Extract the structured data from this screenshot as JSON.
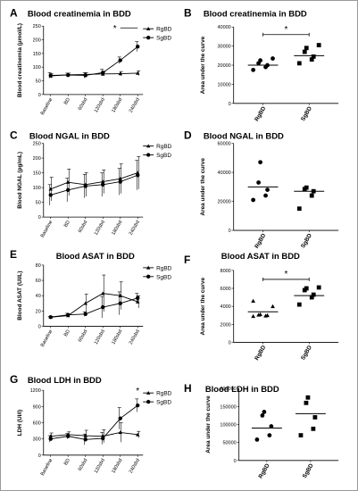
{
  "chart_data": [
    {
      "panel": "A",
      "type": "line",
      "title": "Blood creatinemia in BDD",
      "ylabel": "Blood creatinemia (µmol/L)",
      "xlabel": "",
      "x": [
        "Baseline",
        "BD",
        "60sbd",
        "120sbd",
        "180sbd",
        "240sbd"
      ],
      "ylim": [
        0,
        250
      ],
      "yticks": [
        0,
        50,
        100,
        150,
        200,
        250
      ],
      "series": [
        {
          "name": "RgBD",
          "marker": "triangle",
          "values": [
            68,
            72,
            73,
            75,
            76,
            78
          ],
          "err": [
            8,
            6,
            7,
            7,
            8,
            9
          ]
        },
        {
          "name": "SgBD",
          "marker": "circle",
          "values": [
            70,
            71,
            70,
            80,
            125,
            175
          ],
          "err": [
            10,
            7,
            10,
            12,
            12,
            18
          ]
        }
      ],
      "legend": "top-right",
      "annotation": {
        "text": "*",
        "from": "180sbd",
        "to": "240sbd"
      }
    },
    {
      "panel": "B",
      "type": "scatter",
      "title": "Blood creatinemia in BDD",
      "ylabel": "Area under the curve",
      "categories": [
        "RgBD",
        "SgBD"
      ],
      "ylim": [
        0,
        40000
      ],
      "yticks": [
        0,
        10000,
        20000,
        30000,
        40000
      ],
      "groups": [
        {
          "name": "RgBD",
          "marker": "circle",
          "points": [
            17500,
            19000,
            20000,
            21000,
            22500,
            23500
          ],
          "mean": 20000
        },
        {
          "name": "SgBD",
          "marker": "square",
          "points": [
            21000,
            23000,
            24500,
            27000,
            29000,
            30500
          ],
          "mean": 25000
        }
      ],
      "annotation": {
        "text": "*",
        "value": 36000
      }
    },
    {
      "panel": "C",
      "type": "line",
      "title": "Blood  NGAL in BDD",
      "ylabel": "Blood NGAL (pg/mL)",
      "x": [
        "Baseline",
        "BD",
        "60sbd",
        "120sbd",
        "180sbd",
        "240sbd"
      ],
      "ylim": [
        0,
        250
      ],
      "yticks": [
        0,
        50,
        100,
        150,
        200,
        250
      ],
      "series": [
        {
          "name": "RgBD",
          "marker": "triangle",
          "values": [
            95,
            118,
            110,
            120,
            130,
            150
          ],
          "err": [
            40,
            45,
            40,
            40,
            50,
            55
          ]
        },
        {
          "name": "SgBD",
          "marker": "circle",
          "values": [
            75,
            92,
            105,
            110,
            120,
            142
          ],
          "err": [
            35,
            40,
            40,
            40,
            45,
            50
          ]
        }
      ],
      "legend": "top-right"
    },
    {
      "panel": "D",
      "type": "scatter",
      "title": "Blood  NGAL in BDD",
      "ylabel": "Area under the curve",
      "categories": [
        "RgBD",
        "SgBD"
      ],
      "ylim": [
        0,
        60000
      ],
      "yticks": [
        0,
        20000,
        40000,
        60000
      ],
      "groups": [
        {
          "name": "RgBD",
          "marker": "circle",
          "points": [
            21000,
            24000,
            28000,
            33000,
            47000
          ],
          "mean": 30000
        },
        {
          "name": "SgBD",
          "marker": "square",
          "points": [
            15000,
            24000,
            27000,
            28500,
            29500
          ],
          "mean": 27000
        }
      ]
    },
    {
      "panel": "E",
      "type": "line",
      "title": "Blood ASAT in BDD",
      "ylabel": "Blood ASAT (UI/L)",
      "x": [
        "Baseline",
        "BD",
        "60sbd",
        "120sbd",
        "180sbd",
        "240sbd"
      ],
      "ylim": [
        0,
        80
      ],
      "yticks": [
        0,
        20,
        40,
        60,
        80
      ],
      "series": [
        {
          "name": "RgBD",
          "marker": "triangle",
          "values": [
            12,
            14,
            30,
            43,
            40,
            32
          ],
          "err": [
            1,
            2,
            12,
            24,
            18,
            8
          ]
        },
        {
          "name": "SgBD",
          "marker": "circle",
          "values": [
            12,
            15,
            16,
            25,
            30,
            37
          ],
          "err": [
            1,
            2,
            3,
            14,
            15,
            6
          ]
        }
      ],
      "legend": "top-right"
    },
    {
      "panel": "F",
      "type": "scatter",
      "title": "Blood ASAT in BDD",
      "ylabel": "Area under the curve",
      "categories": [
        "RgBD",
        "SgBD"
      ],
      "ylim": [
        0,
        8000
      ],
      "yticks": [
        0,
        2000,
        4000,
        6000,
        8000
      ],
      "groups": [
        {
          "name": "RgBD",
          "marker": "triangle",
          "points": [
            2900,
            2950,
            3000,
            3050,
            3100,
            4000,
            4600
          ],
          "mean": 3400
        },
        {
          "name": "SgBD",
          "marker": "square",
          "points": [
            4200,
            5000,
            5300,
            5800,
            6000,
            6100
          ],
          "mean": 5200
        },
        {
          "name": "",
          "marker": "",
          "points": [],
          "mean": 0
        }
      ],
      "annotation": {
        "text": "*",
        "value": 7000
      }
    },
    {
      "panel": "G",
      "type": "line",
      "title": "Blood LDH in BDD",
      "ylabel": "LDH (UI/l)",
      "x": [
        "Baseline",
        "BD",
        "60sbd",
        "120sbd",
        "180sbd",
        "240sbd"
      ],
      "ylim": [
        0,
        1200
      ],
      "yticks": [
        0,
        300,
        600,
        900,
        1200
      ],
      "series": [
        {
          "name": "RgBD",
          "marker": "triangle",
          "values": [
            350,
            380,
            360,
            350,
            420,
            380
          ],
          "err": [
            60,
            50,
            100,
            120,
            180,
            60
          ]
        },
        {
          "name": "SgBD",
          "marker": "circle",
          "values": [
            300,
            350,
            290,
            310,
            680,
            920
          ],
          "err": [
            60,
            50,
            100,
            110,
            200,
            120
          ]
        }
      ],
      "legend": "top-right",
      "annotation": {
        "text": "*",
        "at": "240sbd"
      }
    },
    {
      "panel": "H",
      "type": "scatter",
      "title": "Blood LDH in BDD",
      "ylabel": "Area under the curve",
      "categories": [
        "RgBD",
        "SgBD"
      ],
      "ylim": [
        0,
        200000
      ],
      "yticks": [
        0,
        50000,
        100000,
        150000,
        200000
      ],
      "groups": [
        {
          "name": "RgBD",
          "marker": "circle",
          "points": [
            58000,
            70000,
            95000,
            125000,
            135000
          ],
          "mean": 90000
        },
        {
          "name": "SgBD",
          "marker": "square",
          "points": [
            70000,
            88000,
            120000,
            160000,
            175000
          ],
          "mean": 130000
        }
      ]
    }
  ]
}
